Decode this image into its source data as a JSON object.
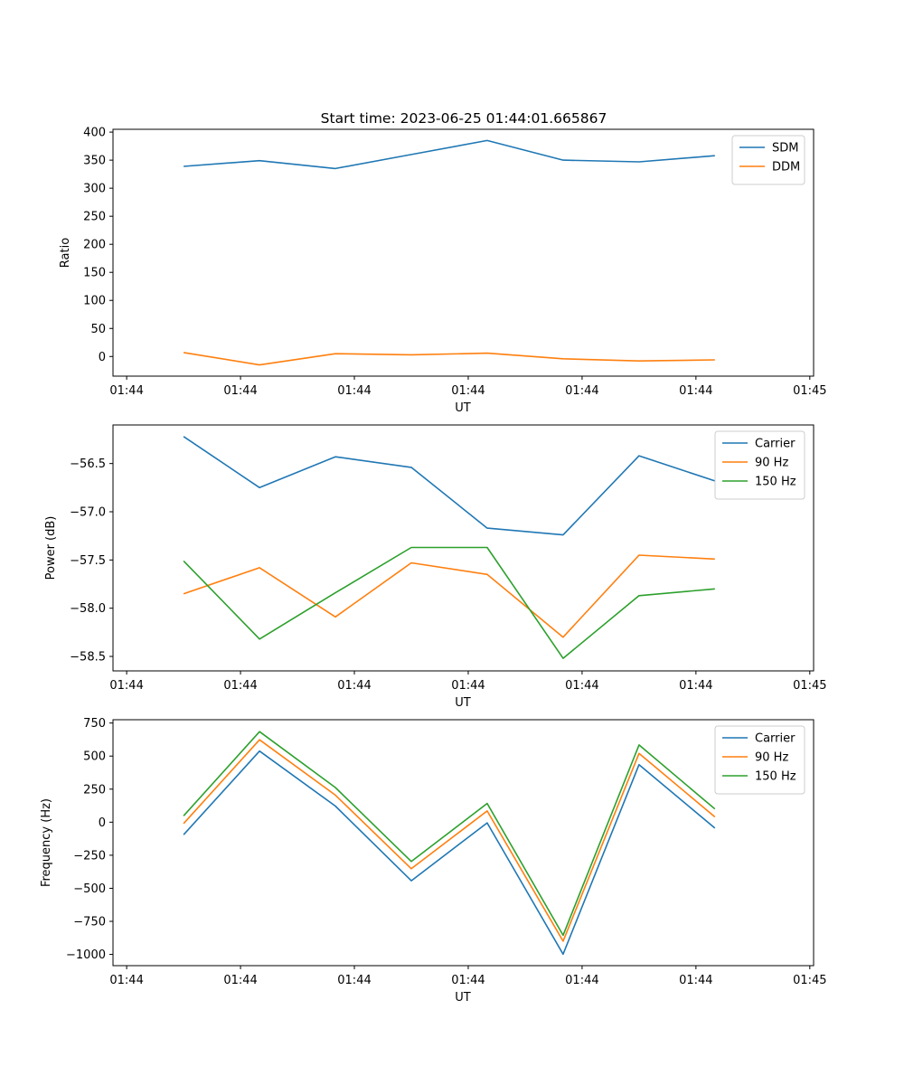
{
  "title": "Start time: 2023-06-25 01:44:01.665867",
  "chart_data": [
    {
      "type": "line",
      "xlabel": "UT",
      "ylabel": "Ratio",
      "x_tick_labels": [
        "01:44",
        "01:44",
        "01:44",
        "01:44",
        "01:44",
        "01:44",
        "01:45"
      ],
      "y_ticks": [
        0,
        50,
        100,
        150,
        200,
        250,
        300,
        350,
        400
      ],
      "xlim": [
        -0.18,
        9.05
      ],
      "ylim": [
        -35,
        405
      ],
      "legend": "top-right",
      "series": [
        {
          "name": "SDM",
          "color": "#1f77b4",
          "values": [
            339,
            349,
            335,
            360,
            385,
            350,
            347,
            358
          ]
        },
        {
          "name": "DDM",
          "color": "#ff7f0e",
          "values": [
            7,
            -15,
            5,
            3,
            6,
            -4,
            -8,
            -6
          ]
        }
      ]
    },
    {
      "type": "line",
      "xlabel": "UT",
      "ylabel": "Power (dB)",
      "x_tick_labels": [
        "01:44",
        "01:44",
        "01:44",
        "01:44",
        "01:44",
        "01:44",
        "01:45"
      ],
      "y_ticks": [
        -58.5,
        -58.0,
        -57.5,
        -57.0,
        -56.5
      ],
      "y_tick_labels": [
        "−58.5",
        "−58.0",
        "−57.5",
        "−57.0",
        "−56.5"
      ],
      "xlim": [
        -0.18,
        9.05
      ],
      "ylim": [
        -58.65,
        -56.1
      ],
      "legend": "top-right",
      "series": [
        {
          "name": "Carrier",
          "color": "#1f77b4",
          "values": [
            -56.22,
            -56.75,
            -56.43,
            -56.54,
            -57.17,
            -57.24,
            -56.42,
            -56.68
          ]
        },
        {
          "name": "90 Hz",
          "color": "#ff7f0e",
          "values": [
            -57.85,
            -57.58,
            -58.09,
            -57.53,
            -57.65,
            -58.3,
            -57.45,
            -57.49
          ]
        },
        {
          "name": "150 Hz",
          "color": "#2ca02c",
          "values": [
            -57.51,
            -58.32,
            -57.84,
            -57.37,
            -57.37,
            -58.52,
            -57.87,
            -57.8
          ]
        }
      ]
    },
    {
      "type": "line",
      "xlabel": "UT",
      "ylabel": "Frequency (Hz)",
      "x_tick_labels": [
        "01:44",
        "01:44",
        "01:44",
        "01:44",
        "01:44",
        "01:44",
        "01:45"
      ],
      "y_ticks": [
        -1000,
        -750,
        -500,
        -250,
        0,
        250,
        500,
        750
      ],
      "y_tick_labels": [
        "−1000",
        "−750",
        "−500",
        "−250",
        "0",
        "250",
        "500",
        "750"
      ],
      "xlim": [
        -0.18,
        9.05
      ],
      "ylim": [
        -1085,
        775
      ],
      "legend": "top-right",
      "series": [
        {
          "name": "Carrier",
          "color": "#1f77b4",
          "values": [
            -95,
            538,
            122,
            -443,
            -5,
            -998,
            435,
            -45
          ]
        },
        {
          "name": "90 Hz",
          "color": "#ff7f0e",
          "values": [
            -10,
            623,
            205,
            -352,
            85,
            -900,
            520,
            40
          ]
        },
        {
          "name": "150 Hz",
          "color": "#2ca02c",
          "values": [
            48,
            685,
            262,
            -297,
            142,
            -855,
            584,
            100
          ]
        }
      ]
    }
  ]
}
